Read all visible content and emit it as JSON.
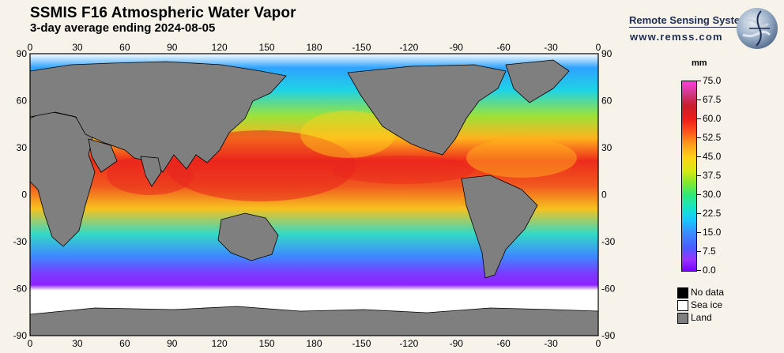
{
  "title": "SSMIS F16 Atmospheric Water Vapor",
  "subtitle": "3-day average ending 2024-08-05",
  "brand": {
    "name": "Remote Sensing Systems",
    "url": "www.remss.com"
  },
  "map": {
    "projection": "equirectangular",
    "lon_ticks": [
      "0",
      "30",
      "60",
      "90",
      "120",
      "150",
      "180",
      "-150",
      "-120",
      "-90",
      "-60",
      "-30",
      "0"
    ],
    "lat_ticks": [
      "90",
      "60",
      "30",
      "0",
      "-30",
      "-60",
      "-90"
    ],
    "colors": {
      "land": "#7f7f7f",
      "sea_ice": "#ffffff",
      "no_data": "#000000",
      "frame_bg": "#f7f3ea"
    }
  },
  "colorbar": {
    "unit": "mm",
    "labels": [
      "75.0",
      "67.5",
      "60.0",
      "52.5",
      "45.0",
      "37.5",
      "30.0",
      "22.5",
      "15.0",
      "7.5",
      "0.0"
    ],
    "min": 0,
    "max": 75
  },
  "legend_keys": [
    {
      "label": "No data",
      "color": "#000000"
    },
    {
      "label": "Sea ice",
      "color": "#ffffff"
    },
    {
      "label": "Land",
      "color": "#7f7f7f"
    }
  ]
}
